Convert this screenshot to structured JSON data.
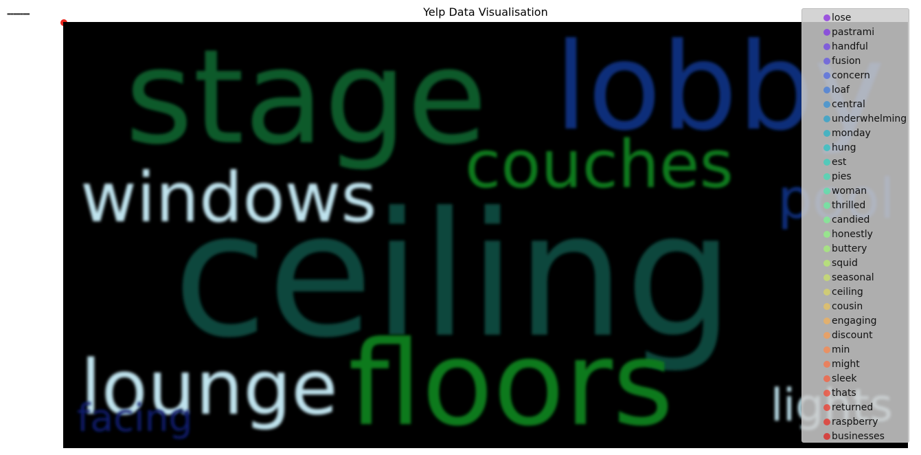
{
  "chart_data": {
    "type": "scatter",
    "title": "Yelp Data Visualisation",
    "legend_position": "right",
    "legend": [
      {
        "name": "lose",
        "color": "#8a2be2"
      },
      {
        "name": "pastrami",
        "color": "#7f32e8"
      },
      {
        "name": "handful",
        "color": "#7043e8"
      },
      {
        "name": "fusion",
        "color": "#6156e6"
      },
      {
        "name": "concern",
        "color": "#5069e2"
      },
      {
        "name": "loaf",
        "color": "#427cdc"
      },
      {
        "name": "central",
        "color": "#3490d5"
      },
      {
        "name": "underwhelming",
        "color": "#28a2cc"
      },
      {
        "name": "monday",
        "color": "#24b3c7"
      },
      {
        "name": "hung",
        "color": "#2ac3c3"
      },
      {
        "name": "est",
        "color": "#34d1bd"
      },
      {
        "name": "pies",
        "color": "#44dcb6"
      },
      {
        "name": "woman",
        "color": "#55e6ab"
      },
      {
        "name": "thrilled",
        "color": "#68ee9f"
      },
      {
        "name": "candied",
        "color": "#7cf391"
      },
      {
        "name": "honestly",
        "color": "#90f583"
      },
      {
        "name": "buttery",
        "color": "#a4f276"
      },
      {
        "name": "squid",
        "color": "#b8ec6c"
      },
      {
        "name": "seasonal",
        "color": "#cae167"
      },
      {
        "name": "ceiling",
        "color": "#dad463"
      },
      {
        "name": "cousin",
        "color": "#e8c35e"
      },
      {
        "name": "engaging",
        "color": "#f2b059"
      },
      {
        "name": "discount",
        "color": "#f89c52"
      },
      {
        "name": "min",
        "color": "#fb874b"
      },
      {
        "name": "might",
        "color": "#fb7244"
      },
      {
        "name": "sleek",
        "color": "#f85d3c"
      },
      {
        "name": "thats",
        "color": "#f44a34"
      },
      {
        "name": "returned",
        "color": "#ee3a2c"
      },
      {
        "name": "raspberry",
        "color": "#e82d25"
      },
      {
        "name": "businesses",
        "color": "#e0201e"
      }
    ],
    "wordcloud": [
      {
        "word": "stage",
        "color": "#0a5a2a"
      },
      {
        "word": "lobby",
        "color": "#0c2f7a"
      },
      {
        "word": "couches",
        "color": "#0b7a1c"
      },
      {
        "word": "windows",
        "color": "#bfe3ee"
      },
      {
        "word": "pool",
        "color": "#0c2f7a"
      },
      {
        "word": "ceiling",
        "color": "#08463c"
      },
      {
        "word": "lounge",
        "color": "#bfe3ee"
      },
      {
        "word": "floors",
        "color": "#0b7a1c"
      },
      {
        "word": "facing",
        "color": "#0a1f6e"
      },
      {
        "word": "lights",
        "color": "#bfe3ee"
      }
    ]
  }
}
